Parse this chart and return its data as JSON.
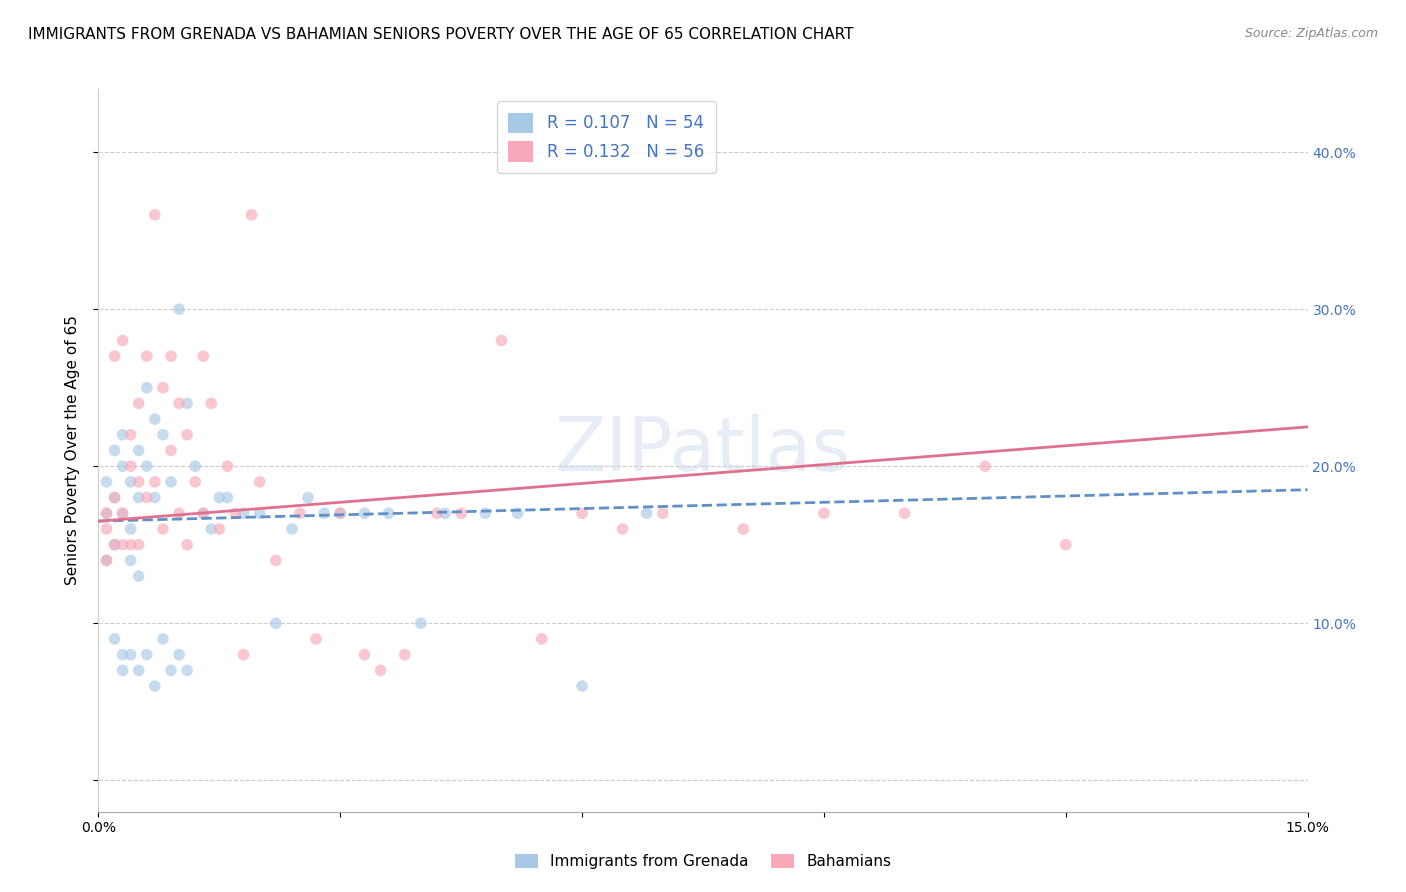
{
  "title": "IMMIGRANTS FROM GRENADA VS BAHAMIAN SENIORS POVERTY OVER THE AGE OF 65 CORRELATION CHART",
  "source": "Source: ZipAtlas.com",
  "ylabel": "Seniors Poverty Over the Age of 65",
  "xlim": [
    0.0,
    0.15
  ],
  "ylim": [
    -0.02,
    0.44
  ],
  "x_ticks": [
    0.0,
    0.03,
    0.06,
    0.09,
    0.12,
    0.15
  ],
  "x_tick_labels": [
    "0.0%",
    "",
    "",
    "",
    "",
    "15.0%"
  ],
  "y_ticks_right": [
    0.0,
    0.1,
    0.2,
    0.3,
    0.4
  ],
  "y_tick_labels_right": [
    "",
    "10.0%",
    "20.0%",
    "30.0%",
    "40.0%"
  ],
  "legend_entries": [
    {
      "label": "R = 0.107   N = 54",
      "color": "#a8c8e8"
    },
    {
      "label": "R = 0.132   N = 56",
      "color": "#f8a8b8"
    }
  ],
  "watermark": "ZIPatlas",
  "blue_scatter_x": [
    0.001,
    0.001,
    0.001,
    0.002,
    0.002,
    0.002,
    0.002,
    0.003,
    0.003,
    0.003,
    0.003,
    0.003,
    0.004,
    0.004,
    0.004,
    0.004,
    0.005,
    0.005,
    0.005,
    0.005,
    0.006,
    0.006,
    0.006,
    0.007,
    0.007,
    0.007,
    0.008,
    0.008,
    0.009,
    0.009,
    0.01,
    0.01,
    0.011,
    0.011,
    0.012,
    0.013,
    0.014,
    0.015,
    0.016,
    0.018,
    0.02,
    0.022,
    0.024,
    0.026,
    0.028,
    0.03,
    0.033,
    0.036,
    0.04,
    0.043,
    0.048,
    0.052,
    0.06,
    0.068
  ],
  "blue_scatter_y": [
    0.17,
    0.19,
    0.14,
    0.18,
    0.21,
    0.15,
    0.09,
    0.2,
    0.22,
    0.17,
    0.08,
    0.07,
    0.19,
    0.16,
    0.14,
    0.08,
    0.21,
    0.18,
    0.13,
    0.07,
    0.25,
    0.2,
    0.08,
    0.23,
    0.18,
    0.06,
    0.22,
    0.09,
    0.19,
    0.07,
    0.3,
    0.08,
    0.24,
    0.07,
    0.2,
    0.17,
    0.16,
    0.18,
    0.18,
    0.17,
    0.17,
    0.1,
    0.16,
    0.18,
    0.17,
    0.17,
    0.17,
    0.17,
    0.1,
    0.17,
    0.17,
    0.17,
    0.06,
    0.17
  ],
  "pink_scatter_x": [
    0.001,
    0.001,
    0.001,
    0.002,
    0.002,
    0.002,
    0.003,
    0.003,
    0.003,
    0.004,
    0.004,
    0.004,
    0.005,
    0.005,
    0.005,
    0.006,
    0.006,
    0.007,
    0.007,
    0.008,
    0.008,
    0.009,
    0.009,
    0.01,
    0.01,
    0.011,
    0.011,
    0.012,
    0.013,
    0.013,
    0.014,
    0.015,
    0.016,
    0.017,
    0.018,
    0.019,
    0.02,
    0.022,
    0.025,
    0.027,
    0.03,
    0.033,
    0.035,
    0.038,
    0.042,
    0.045,
    0.05,
    0.055,
    0.06,
    0.065,
    0.07,
    0.08,
    0.09,
    0.1,
    0.11,
    0.12
  ],
  "pink_scatter_y": [
    0.17,
    0.16,
    0.14,
    0.27,
    0.18,
    0.15,
    0.17,
    0.15,
    0.28,
    0.22,
    0.2,
    0.15,
    0.24,
    0.19,
    0.15,
    0.27,
    0.18,
    0.36,
    0.19,
    0.25,
    0.16,
    0.27,
    0.21,
    0.24,
    0.17,
    0.22,
    0.15,
    0.19,
    0.27,
    0.17,
    0.24,
    0.16,
    0.2,
    0.17,
    0.08,
    0.36,
    0.19,
    0.14,
    0.17,
    0.09,
    0.17,
    0.08,
    0.07,
    0.08,
    0.17,
    0.17,
    0.28,
    0.09,
    0.17,
    0.16,
    0.17,
    0.16,
    0.17,
    0.17,
    0.2,
    0.15
  ],
  "blue_line_x0": 0.0,
  "blue_line_x1": 0.15,
  "blue_line_y0": 0.165,
  "blue_line_y1": 0.185,
  "pink_line_x0": 0.0,
  "pink_line_x1": 0.15,
  "pink_line_y0": 0.165,
  "pink_line_y1": 0.225,
  "blue_line_color": "#6090c8",
  "pink_line_color": "#e07090",
  "blue_line_style": "--",
  "pink_line_style": "-",
  "blue_scatter_color": "#a8c8e8",
  "pink_scatter_color": "#f8a8b8",
  "scatter_alpha": 0.65,
  "scatter_size": 70,
  "background_color": "#ffffff",
  "grid_color": "#cccccc",
  "right_axis_color": "#4472c4",
  "title_fontsize": 11,
  "axis_label_fontsize": 11,
  "tick_fontsize": 10
}
